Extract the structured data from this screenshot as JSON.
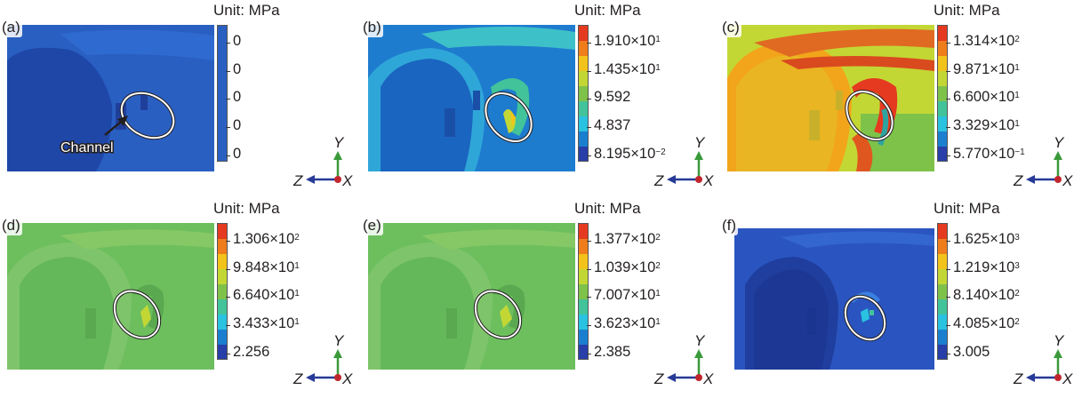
{
  "unit_label": "Unit: MPa",
  "channel_label": "Channel",
  "axes": {
    "up": "Y",
    "left": "Z",
    "out": "X"
  },
  "colors": {
    "scale": [
      "#283ea8",
      "#1b7fd0",
      "#29c2e0",
      "#42c39a",
      "#7ec24a",
      "#c3d734",
      "#f2c31a",
      "#f07d1c",
      "#e53a1f"
    ]
  },
  "panels": [
    {
      "id": "a",
      "letter": "(a)",
      "ticks": [
        {
          "m": "0",
          "e": ""
        },
        {
          "m": "0",
          "e": ""
        },
        {
          "m": "0",
          "e": ""
        },
        {
          "m": "0",
          "e": ""
        },
        {
          "m": "0",
          "e": ""
        }
      ]
    },
    {
      "id": "b",
      "letter": "(b)",
      "ticks": [
        {
          "m": "1.910×10",
          "e": "1"
        },
        {
          "m": "1.435×10",
          "e": "1"
        },
        {
          "m": "9.592",
          "e": ""
        },
        {
          "m": "4.837",
          "e": ""
        },
        {
          "m": "8.195×10",
          "e": "−2"
        }
      ]
    },
    {
      "id": "c",
      "letter": "(c)",
      "ticks": [
        {
          "m": "1.314×10",
          "e": "2"
        },
        {
          "m": "9.871×10",
          "e": "1"
        },
        {
          "m": "6.600×10",
          "e": "1"
        },
        {
          "m": "3.329×10",
          "e": "1"
        },
        {
          "m": "5.770×10",
          "e": "−1"
        }
      ]
    },
    {
      "id": "d",
      "letter": "(d)",
      "ticks": [
        {
          "m": "1.306×10",
          "e": "2"
        },
        {
          "m": "9.848×10",
          "e": "1"
        },
        {
          "m": "6.640×10",
          "e": "1"
        },
        {
          "m": "3.433×10",
          "e": "1"
        },
        {
          "m": "2.256",
          "e": ""
        }
      ]
    },
    {
      "id": "e",
      "letter": "(e)",
      "ticks": [
        {
          "m": "1.377×10",
          "e": "2"
        },
        {
          "m": "1.039×10",
          "e": "2"
        },
        {
          "m": "7.007×10",
          "e": "1"
        },
        {
          "m": "3.623×10",
          "e": "1"
        },
        {
          "m": "2.385",
          "e": ""
        }
      ]
    },
    {
      "id": "f",
      "letter": "(f)",
      "ticks": [
        {
          "m": "1.625×10",
          "e": "3"
        },
        {
          "m": "1.219×10",
          "e": "3"
        },
        {
          "m": "8.140×10",
          "e": "2"
        },
        {
          "m": "4.085×10",
          "e": "2"
        },
        {
          "m": "3.005",
          "e": ""
        }
      ]
    }
  ]
}
